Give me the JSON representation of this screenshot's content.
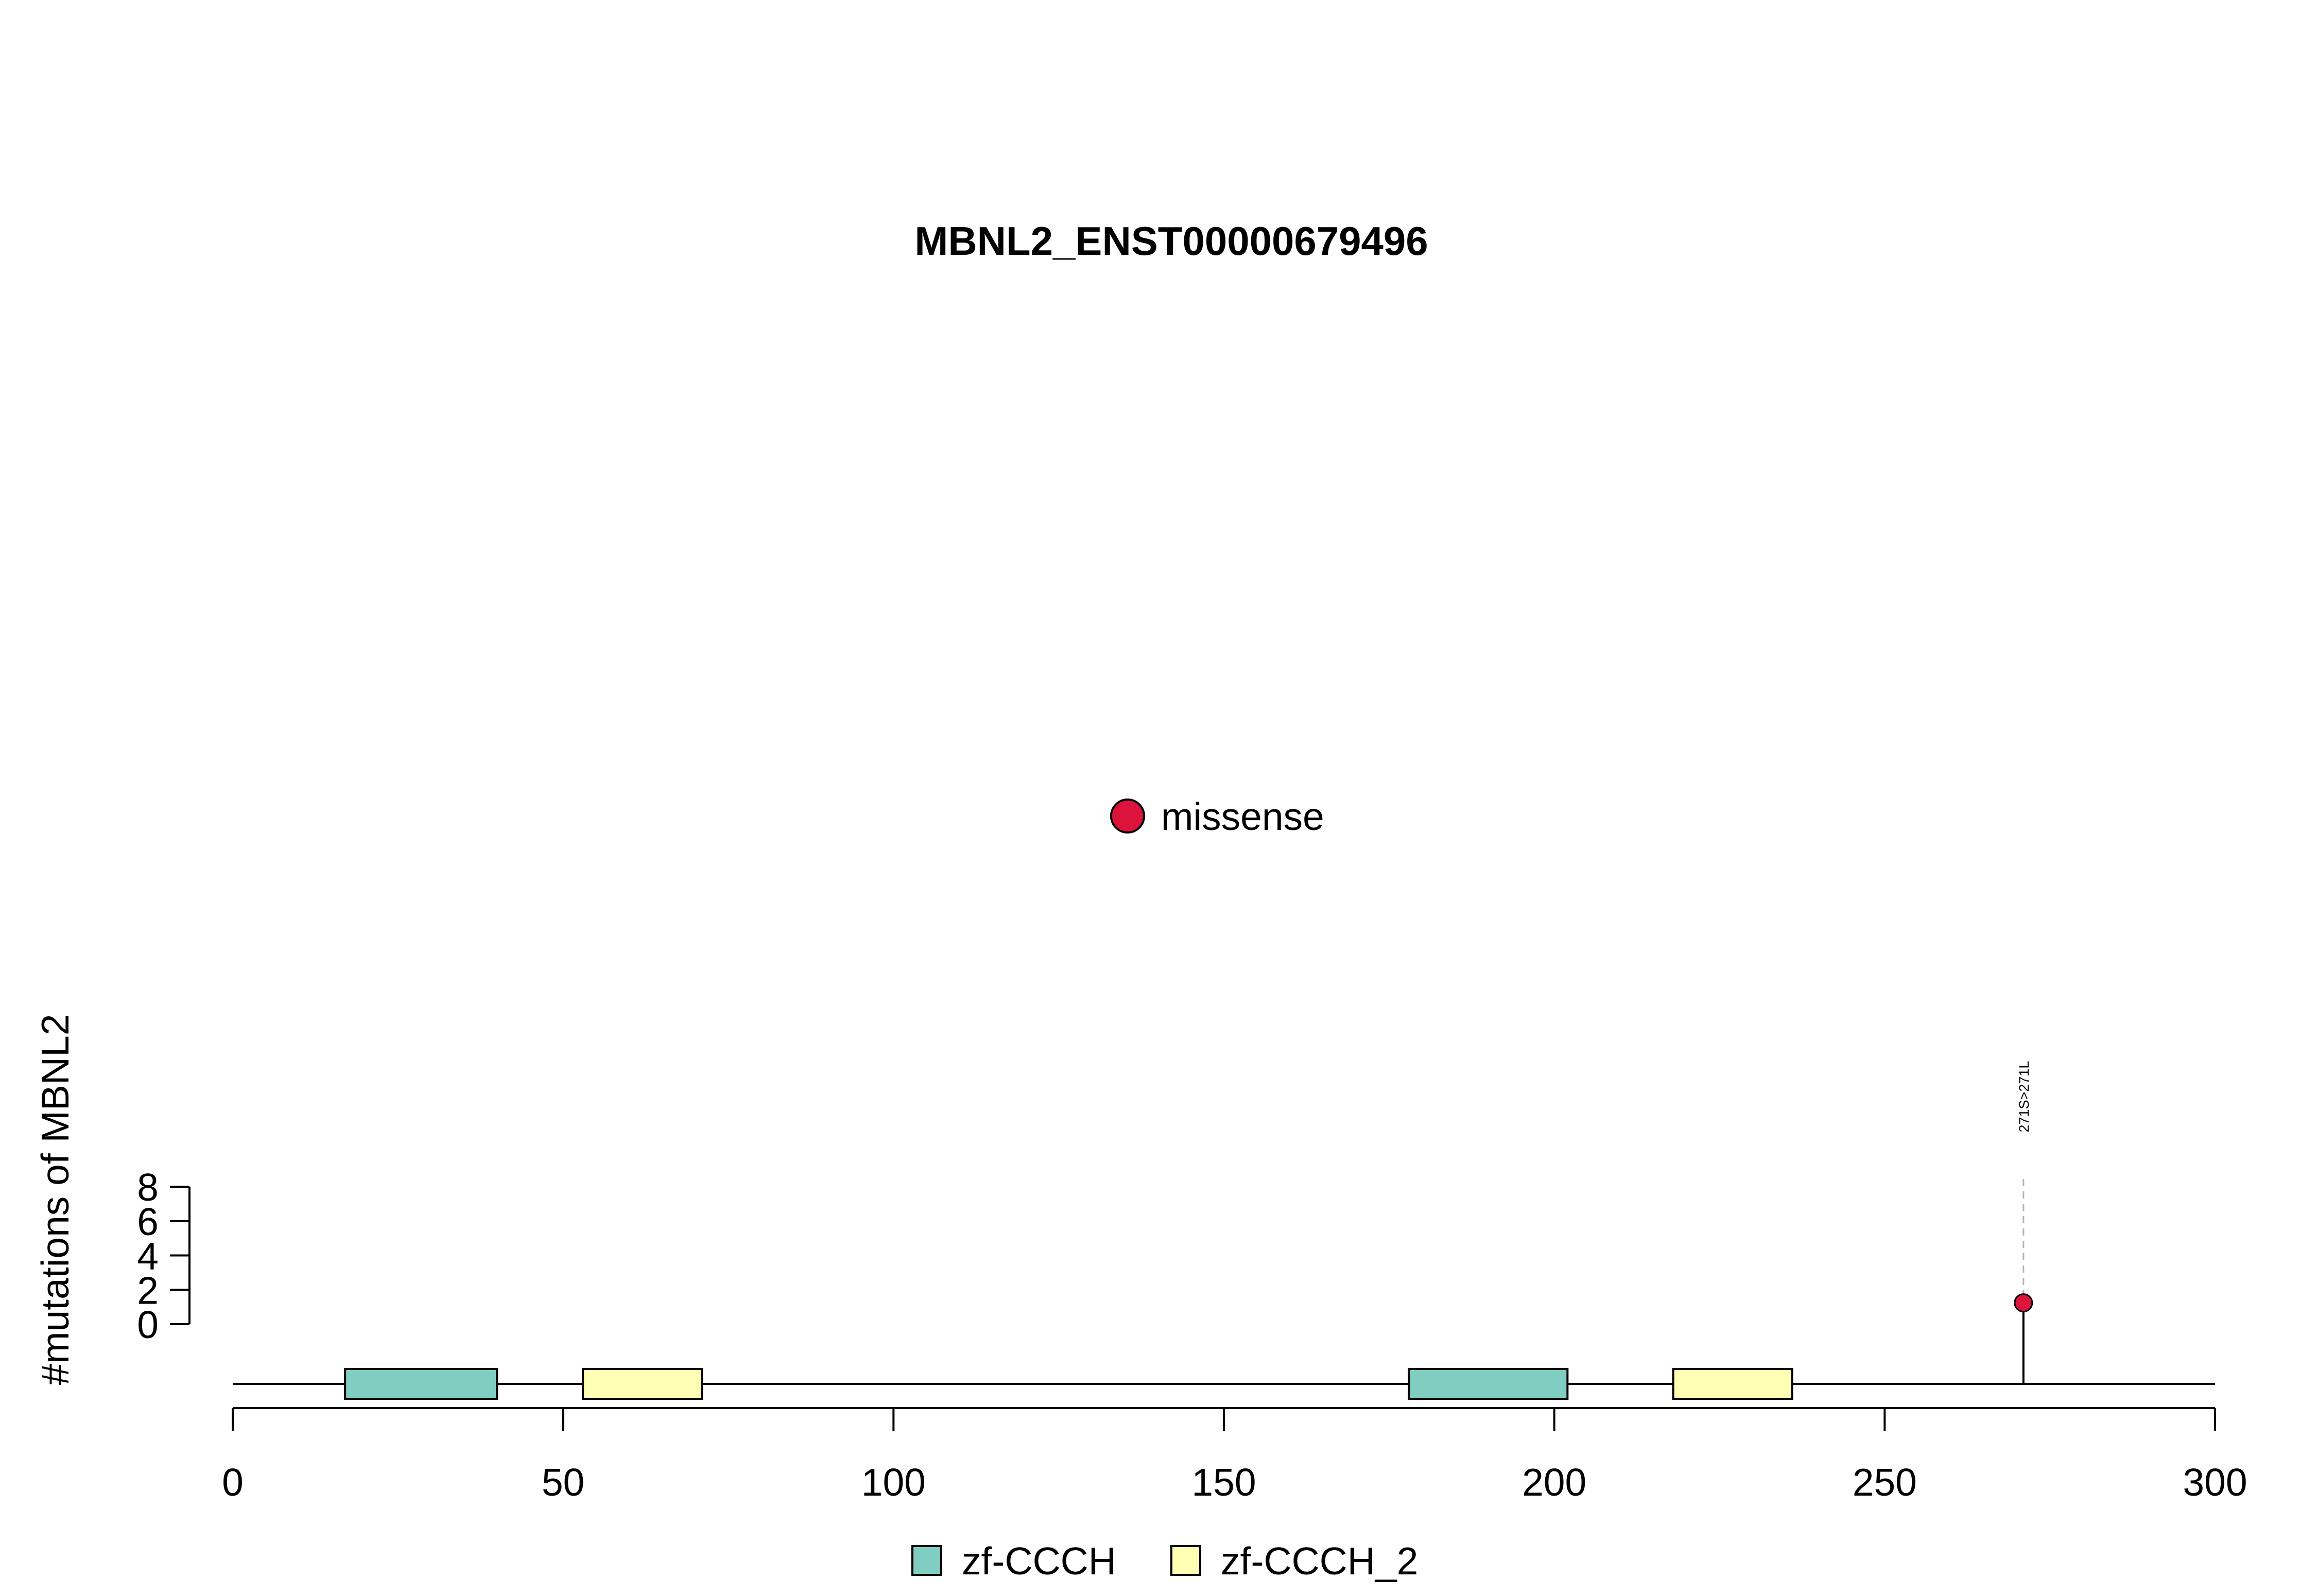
{
  "chart_data": {
    "type": "lollipop",
    "title": "MBNL2_ENST00000679496",
    "ylabel": "#mutations of MBNL2",
    "xlim": [
      0,
      300
    ],
    "x_ticks": [
      0,
      50,
      100,
      150,
      200,
      250,
      300
    ],
    "x_tick_labels": [
      "0",
      "50",
      "100",
      "150",
      "200",
      "250",
      "300"
    ],
    "ylim": [
      0,
      8
    ],
    "y_ticks": [
      0,
      2,
      4,
      6,
      8
    ],
    "y_tick_labels": [
      "0",
      "2",
      "4",
      "6",
      "8"
    ],
    "domains": [
      {
        "name": "zf-CCCH",
        "start": 17,
        "end": 40,
        "color": "#80CDC1"
      },
      {
        "name": "zf-CCCH_2",
        "start": 53,
        "end": 71,
        "color": "#FFFFB3"
      },
      {
        "name": "zf-CCCH",
        "start": 178,
        "end": 202,
        "color": "#80CDC1"
      },
      {
        "name": "zf-CCCH_2",
        "start": 218,
        "end": 236,
        "color": "#FFFFB3"
      }
    ],
    "mutations": [
      {
        "position": 271,
        "count": 1,
        "label": "271S>271L",
        "type": "missense",
        "color": "#DC143C"
      }
    ],
    "mutation_legend": [
      {
        "label": "missense",
        "color": "#DC143C"
      }
    ],
    "domain_legend": [
      {
        "label": "zf-CCCH",
        "color": "#80CDC1"
      },
      {
        "label": "zf-CCCH_2",
        "color": "#FFFFB3"
      }
    ]
  }
}
